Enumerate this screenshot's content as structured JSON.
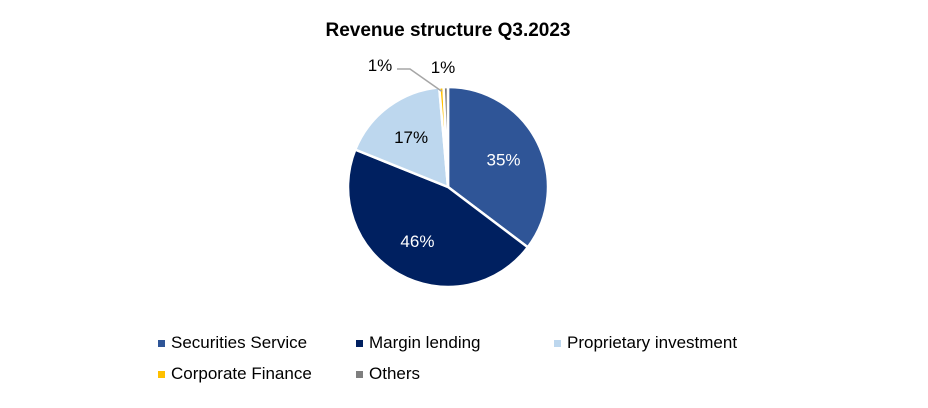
{
  "chart_data": {
    "type": "pie",
    "title": "Revenue structure Q3.2023",
    "categories": [
      "Securities Service",
      "Margin lending",
      "Proprietary investment",
      "Corporate Finance",
      "Others"
    ],
    "values": [
      35.3,
      45.8,
      17.5,
      0.7,
      0.7
    ],
    "labels": [
      "35%",
      "46%",
      "17%",
      "1%",
      "1%"
    ],
    "colors": [
      "#2F5597",
      "#002060",
      "#BDD7EE",
      "#FFC000",
      "#7F7F7F"
    ],
    "label_colors": [
      "#ffffff",
      "#ffffff",
      "#000000",
      "#000000",
      "#000000"
    ],
    "legend_position": "bottom",
    "start": "top, clockwise"
  }
}
